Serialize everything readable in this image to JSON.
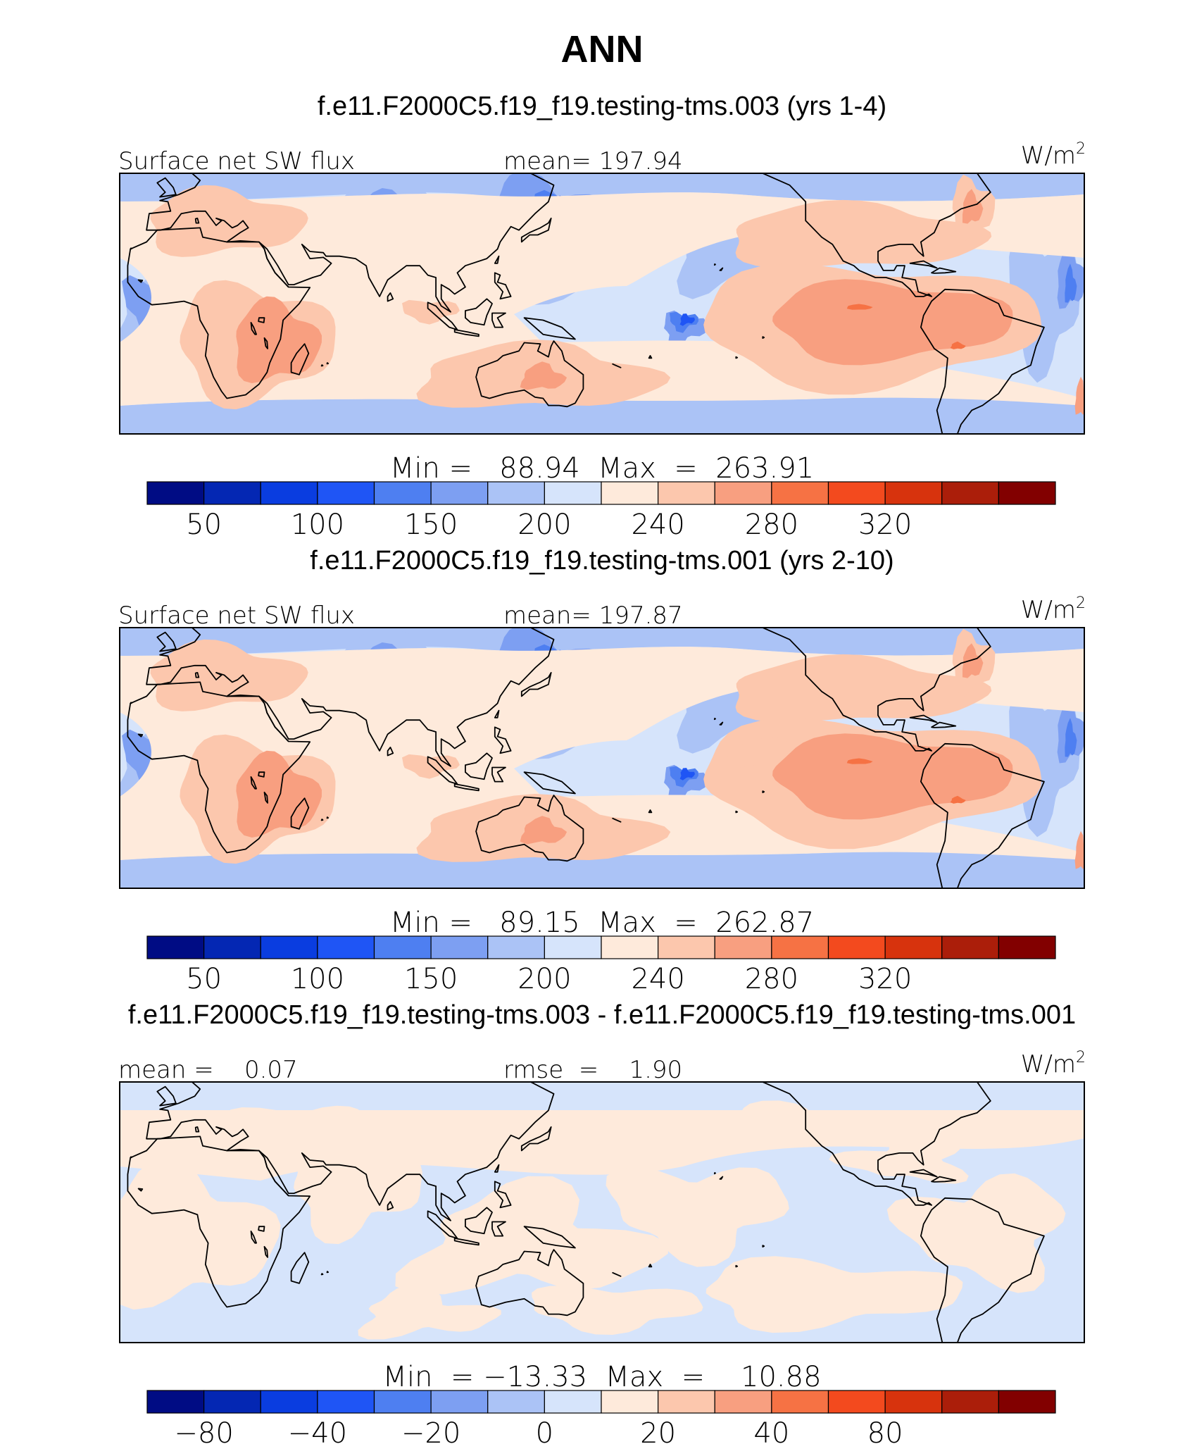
{
  "chart_data": {
    "type": "contour-map",
    "title": "ANN",
    "panels": [
      {
        "case_title": "f.e11.F2000C5.f19_f19.testing-tms.003 (yrs 1-4)",
        "left_label": "Surface net SW flux",
        "center_label": "mean= 197.94",
        "units": "W/m",
        "units_exp": "2",
        "minmax": "Min =   88.94  Max  =  263.91",
        "colorbar_ticks": [
          "50",
          "100",
          "150",
          "200",
          "240",
          "280",
          "320"
        ],
        "colorbar_tick_boundaries": [
          1,
          3,
          5,
          7,
          9,
          11,
          13
        ]
      },
      {
        "case_title": "f.e11.F2000C5.f19_f19.testing-tms.001 (yrs 2-10)",
        "left_label": "Surface net SW flux",
        "center_label": "mean= 197.87",
        "units": "W/m",
        "units_exp": "2",
        "minmax": "Min =   89.15  Max  =  262.87",
        "colorbar_ticks": [
          "50",
          "100",
          "150",
          "200",
          "240",
          "280",
          "320"
        ],
        "colorbar_tick_boundaries": [
          1,
          3,
          5,
          7,
          9,
          11,
          13
        ]
      },
      {
        "case_title": "f.e11.F2000C5.f19_f19.testing-tms.003 - f.e11.F2000C5.f19_f19.testing-tms.001",
        "left_label": "mean =    0.07",
        "center_label": "rmse  =    1.90",
        "units": "W/m",
        "units_exp": "2",
        "minmax": "Min  = −13.33  Max  =    10.88",
        "colorbar_ticks": [
          "−80",
          "−40",
          "−20",
          "0",
          "20",
          "40",
          "80"
        ],
        "colorbar_tick_boundaries": [
          1,
          3,
          5,
          7,
          9,
          11,
          13
        ]
      }
    ],
    "colormap": [
      "#000c84",
      "#0427b3",
      "#0a3de0",
      "#1f55f5",
      "#4e7ff1",
      "#7d9ff2",
      "#abc3f6",
      "#d6e4fb",
      "#feeadb",
      "#fcc7ad",
      "#f89f80",
      "#f67244",
      "#f34a1e",
      "#d7330d",
      "#ab1e0a",
      "#820000"
    ]
  }
}
